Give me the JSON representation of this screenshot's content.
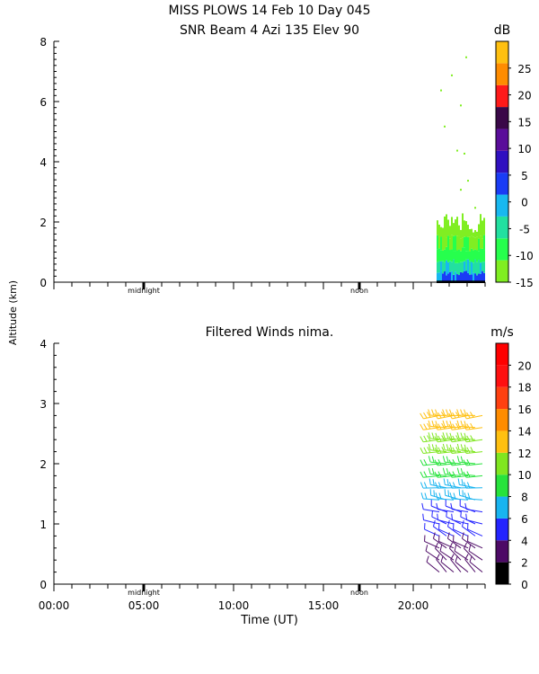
{
  "header": {
    "title_line1": "MISS PLOWS  14 Feb 10 Day 045",
    "title_line2": "SNR Beam 4 Azi 135 Elev 90"
  },
  "axes": {
    "ylabel": "Altitude (km)",
    "xlabel": "Time (UT)",
    "x_ticks": [
      "00:00",
      "05:00",
      "10:00",
      "15:00",
      "20:00"
    ],
    "marker_labels": [
      "midnight",
      "noon"
    ]
  },
  "colors": {
    "snr_bins": [
      "#80ee22",
      "#26ff4d",
      "#22e0a0",
      "#18b8f0",
      "#1a3cf5",
      "#3010c0",
      "#5a0d9a",
      "#3a0848",
      "#ff1a1a",
      "#ff8c00",
      "#ffc010"
    ],
    "wind_bins": [
      "#000000",
      "#4d0a66",
      "#2424ff",
      "#18b4f0",
      "#27e33c",
      "#80e620",
      "#ffc010",
      "#ff8c00",
      "#ff4010",
      "#ff1010",
      "#ff0000"
    ]
  },
  "chart_data": [
    {
      "type": "heatmap",
      "title": "",
      "xlabel": "",
      "ylabel": "Altitude (km)",
      "xlim": [
        0,
        24
      ],
      "ylim": [
        0,
        8
      ],
      "y_ticks": [
        0,
        2,
        4,
        6,
        8
      ],
      "colorbar": {
        "unit": "dB",
        "ticks": [
          -15,
          -10,
          -5,
          0,
          5,
          10,
          15,
          20,
          25
        ],
        "range": [
          -15,
          30
        ]
      },
      "data_extent": {
        "time_start_h": 21.3,
        "time_end_h": 24.0
      },
      "profile": [
        {
          "time_h": 21.3,
          "max_alt_km": 2.3
        },
        {
          "time_h": 21.8,
          "max_alt_km": 2.3
        },
        {
          "time_h": 22.3,
          "max_alt_km": 2.2
        },
        {
          "time_h": 22.8,
          "max_alt_km": 2.3
        },
        {
          "time_h": 23.3,
          "max_alt_km": 2.1
        },
        {
          "time_h": 23.8,
          "max_alt_km": 2.4
        }
      ],
      "layers": [
        {
          "top_km": 0.3,
          "snr_db": 2
        },
        {
          "top_km": 0.7,
          "snr_db": -3
        },
        {
          "top_km": 1.1,
          "snr_db": -8
        },
        {
          "top_km": 1.5,
          "snr_db": -11
        },
        {
          "top_km": 2.3,
          "snr_db": -14
        }
      ]
    },
    {
      "type": "barbs",
      "title": "Filtered Winds nima.",
      "xlabel": "Time (UT)",
      "ylabel": "Altitude (km)",
      "xlim": [
        0,
        24
      ],
      "ylim": [
        0,
        4
      ],
      "y_ticks": [
        0,
        1,
        2,
        3,
        4
      ],
      "colorbar": {
        "unit": "m/s",
        "ticks": [
          0,
          2,
          4,
          6,
          8,
          10,
          12,
          14,
          16,
          18,
          20
        ],
        "range": [
          0,
          22
        ]
      },
      "columns_h": [
        21.45,
        21.85,
        22.25,
        22.65,
        23.05,
        23.45,
        23.85
      ],
      "levels": [
        {
          "alt_km": 0.2,
          "speed": 3,
          "dir_deg": 315
        },
        {
          "alt_km": 0.4,
          "speed": 3,
          "dir_deg": 310
        },
        {
          "alt_km": 0.6,
          "speed": 3,
          "dir_deg": 300
        },
        {
          "alt_km": 0.8,
          "speed": 4,
          "dir_deg": 300
        },
        {
          "alt_km": 1.0,
          "speed": 4,
          "dir_deg": 290
        },
        {
          "alt_km": 1.2,
          "speed": 5,
          "dir_deg": 285
        },
        {
          "alt_km": 1.4,
          "speed": 7,
          "dir_deg": 280
        },
        {
          "alt_km": 1.6,
          "speed": 7,
          "dir_deg": 275
        },
        {
          "alt_km": 1.8,
          "speed": 8,
          "dir_deg": 270
        },
        {
          "alt_km": 2.0,
          "speed": 9,
          "dir_deg": 270
        },
        {
          "alt_km": 2.2,
          "speed": 10,
          "dir_deg": 270
        },
        {
          "alt_km": 2.4,
          "speed": 11,
          "dir_deg": 268
        },
        {
          "alt_km": 2.6,
          "speed": 12,
          "dir_deg": 268
        },
        {
          "alt_km": 2.8,
          "speed": 13,
          "dir_deg": 265
        }
      ]
    }
  ]
}
